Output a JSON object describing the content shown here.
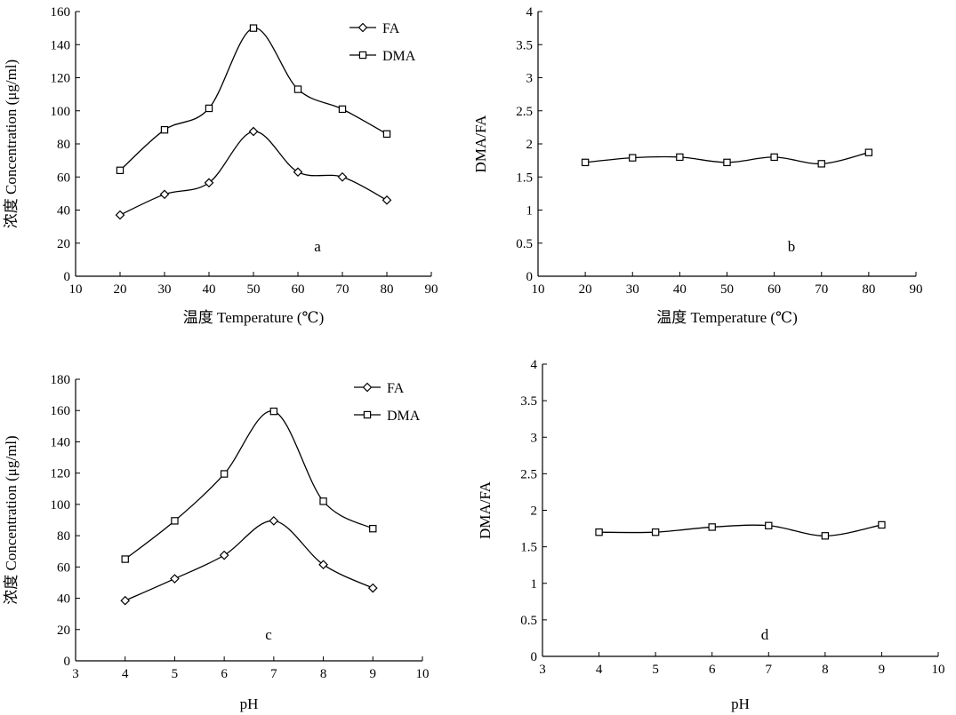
{
  "chart_data": [
    {
      "id": "a",
      "type": "line",
      "panel_label": "a",
      "xlabel": "温度 Temperature (℃)",
      "ylabel": "浓度 Concentration (μg/ml)",
      "xlim": [
        10,
        90
      ],
      "ylim": [
        0,
        160
      ],
      "xticks": [
        "10",
        "20",
        "30",
        "40",
        "50",
        "60",
        "70",
        "80",
        "90"
      ],
      "yticks": [
        "0",
        "20",
        "40",
        "60",
        "80",
        "100",
        "120",
        "140",
        "160"
      ],
      "legend": "top-right",
      "x": [
        20,
        30,
        40,
        50,
        60,
        70,
        80
      ],
      "series": [
        {
          "name": "FA",
          "marker": "diamond",
          "values": [
            37,
            49.5,
            56.5,
            87.5,
            63,
            60,
            46
          ]
        },
        {
          "name": "DMA",
          "marker": "square",
          "values": [
            64,
            88.5,
            101.5,
            150,
            113,
            101,
            86
          ]
        }
      ]
    },
    {
      "id": "b",
      "type": "line",
      "panel_label": "b",
      "xlabel": "温度 Temperature (℃)",
      "ylabel": "DMA/FA",
      "xlim": [
        10,
        90
      ],
      "ylim": [
        0,
        4
      ],
      "xticks": [
        "10",
        "20",
        "30",
        "40",
        "50",
        "60",
        "70",
        "80",
        "90"
      ],
      "yticks": [
        "0",
        "0.5",
        "1",
        "1.5",
        "2",
        "2.5",
        "3",
        "3.5",
        "4"
      ],
      "x": [
        20,
        30,
        40,
        50,
        60,
        70,
        80
      ],
      "series": [
        {
          "marker": "square",
          "values": [
            1.72,
            1.79,
            1.8,
            1.72,
            1.8,
            1.7,
            1.87
          ]
        }
      ]
    },
    {
      "id": "c",
      "type": "line",
      "panel_label": "c",
      "xlabel": "pH",
      "ylabel": "浓度 Concentration (μg/ml)",
      "xlim": [
        3,
        10
      ],
      "ylim": [
        0,
        180
      ],
      "xticks": [
        "3",
        "4",
        "5",
        "6",
        "7",
        "8",
        "9",
        "10"
      ],
      "yticks": [
        "0",
        "20",
        "40",
        "60",
        "80",
        "100",
        "120",
        "140",
        "160",
        "180"
      ],
      "legend": "top-right",
      "x": [
        4,
        5,
        6,
        7,
        8,
        9
      ],
      "series": [
        {
          "name": "FA",
          "marker": "diamond",
          "values": [
            38.5,
            52.5,
            67.5,
            89.5,
            61.5,
            46.5
          ]
        },
        {
          "name": "DMA",
          "marker": "square",
          "values": [
            65,
            89.5,
            119.5,
            159.5,
            102,
            84.5
          ]
        }
      ]
    },
    {
      "id": "d",
      "type": "line",
      "panel_label": "d",
      "xlabel": "pH",
      "ylabel": "DMA/FA",
      "xlim": [
        3,
        10
      ],
      "ylim": [
        0,
        4
      ],
      "xticks": [
        "3",
        "4",
        "5",
        "6",
        "7",
        "8",
        "9",
        "10"
      ],
      "yticks": [
        "0",
        "0.5",
        "1",
        "1.5",
        "2",
        "2.5",
        "3",
        "3.5",
        "4"
      ],
      "x": [
        4,
        5,
        6,
        7,
        8,
        9
      ],
      "series": [
        {
          "marker": "square",
          "values": [
            1.7,
            1.7,
            1.77,
            1.79,
            1.65,
            1.8
          ]
        }
      ]
    }
  ]
}
